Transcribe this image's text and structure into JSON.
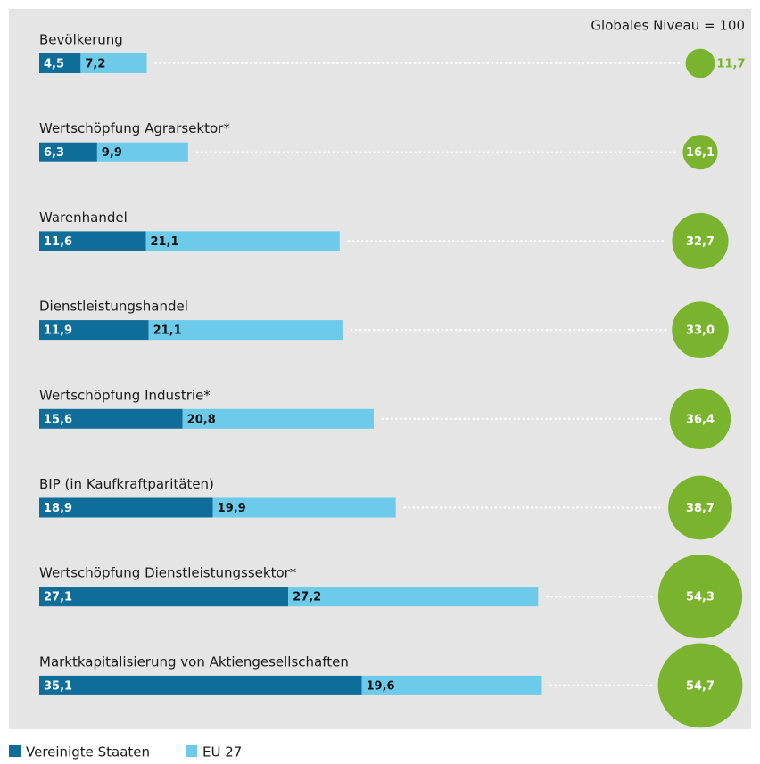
{
  "chart_data": {
    "type": "bar",
    "stacked": true,
    "orientation": "horizontal",
    "annotation": "Globales Niveau = 100",
    "categories": [
      "Bevölkerung",
      "Wertschöpfung Agrarsektor*",
      "Warenhandel",
      "Dienstleistungshandel",
      "Wertschöpfung Industrie*",
      "BIP (in Kaufkraftparitäten)",
      "Wertschöpfung Dienstleistungssektor*",
      "Marktkapitalisierung von Aktiengesellschaften"
    ],
    "series": [
      {
        "name": "Vereinigte Staaten",
        "color": "#0e6e99",
        "values": [
          4.5,
          6.3,
          11.6,
          11.9,
          15.6,
          18.9,
          27.1,
          35.1
        ],
        "value_labels": [
          "4,5",
          "6,3",
          "11,6",
          "11,9",
          "15,6",
          "18,9",
          "27,1",
          "35,1"
        ]
      },
      {
        "name": "EU 27",
        "color": "#6ccaeb",
        "values": [
          7.2,
          9.9,
          21.1,
          21.1,
          20.8,
          19.9,
          27.2,
          19.6
        ],
        "value_labels": [
          "7,2",
          "9,9",
          "21,1",
          "21,1",
          "20,8",
          "19,9",
          "27,2",
          "19,6"
        ]
      }
    ],
    "totals": {
      "color": "#7ab32e",
      "values": [
        11.7,
        16.1,
        32.7,
        33.0,
        36.4,
        38.7,
        54.3,
        54.7
      ],
      "value_labels": [
        "11,7",
        "16,1",
        "32,7",
        "33,0",
        "36,4",
        "38,7",
        "54,3",
        "54,7"
      ]
    },
    "xlim": [
      0,
      100
    ]
  }
}
